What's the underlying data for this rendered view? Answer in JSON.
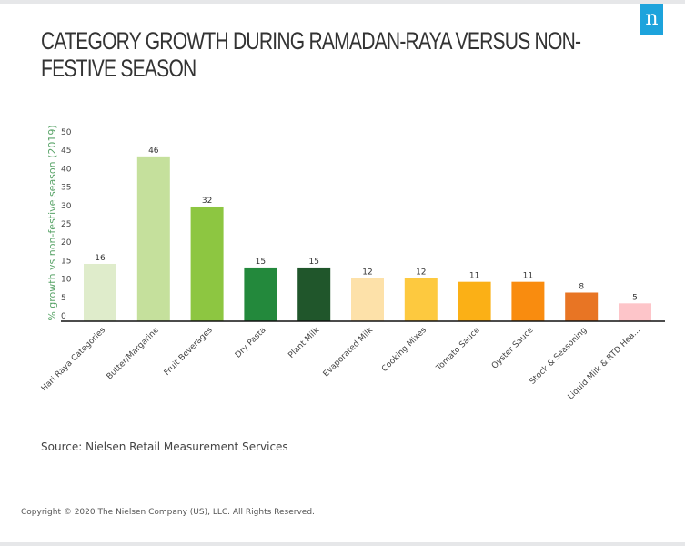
{
  "header": {
    "logo_glyph": "n",
    "logo_icon": "nielsen-logo-icon",
    "brand_color": "#1da3dc"
  },
  "footer": {
    "source": "Source: Nielsen Retail Measurement Services",
    "copyright": "Copyright © 2020 The Nielsen Company (US), LLC. All Rights Reserved."
  },
  "chart_data": {
    "type": "bar",
    "title": "CATEGORY GROWTH DURING RAMADAN-RAYA VERSUS NON-FESTIVE SEASON",
    "xlabel": "",
    "ylabel": "% growth vs non-festive season (2019)",
    "ylim": [
      0,
      50
    ],
    "yticks": [
      0,
      5,
      10,
      15,
      20,
      25,
      30,
      35,
      40,
      45,
      50
    ],
    "grid": false,
    "legend": "none",
    "categories": [
      "Hari Raya Categories",
      "Butter/Margarine",
      "Fruit Beverages",
      "Dry Pasta",
      "Plant Milk",
      "Evaporated Milk",
      "Cooking Mixes",
      "Tomato Sauce",
      "Oyster Sauce",
      "Stock & Seasoning",
      "Liquid Milk & RTD Hea..."
    ],
    "values": [
      16,
      46,
      32,
      15,
      15,
      12,
      12,
      11,
      11,
      8,
      5
    ],
    "colors": [
      "#dfeccb",
      "#c5e09c",
      "#8dc641",
      "#23893c",
      "#20562b",
      "#fde1a9",
      "#fdc93f",
      "#fbb016",
      "#f98c0f",
      "#e87524",
      "#fdc5c9"
    ]
  }
}
